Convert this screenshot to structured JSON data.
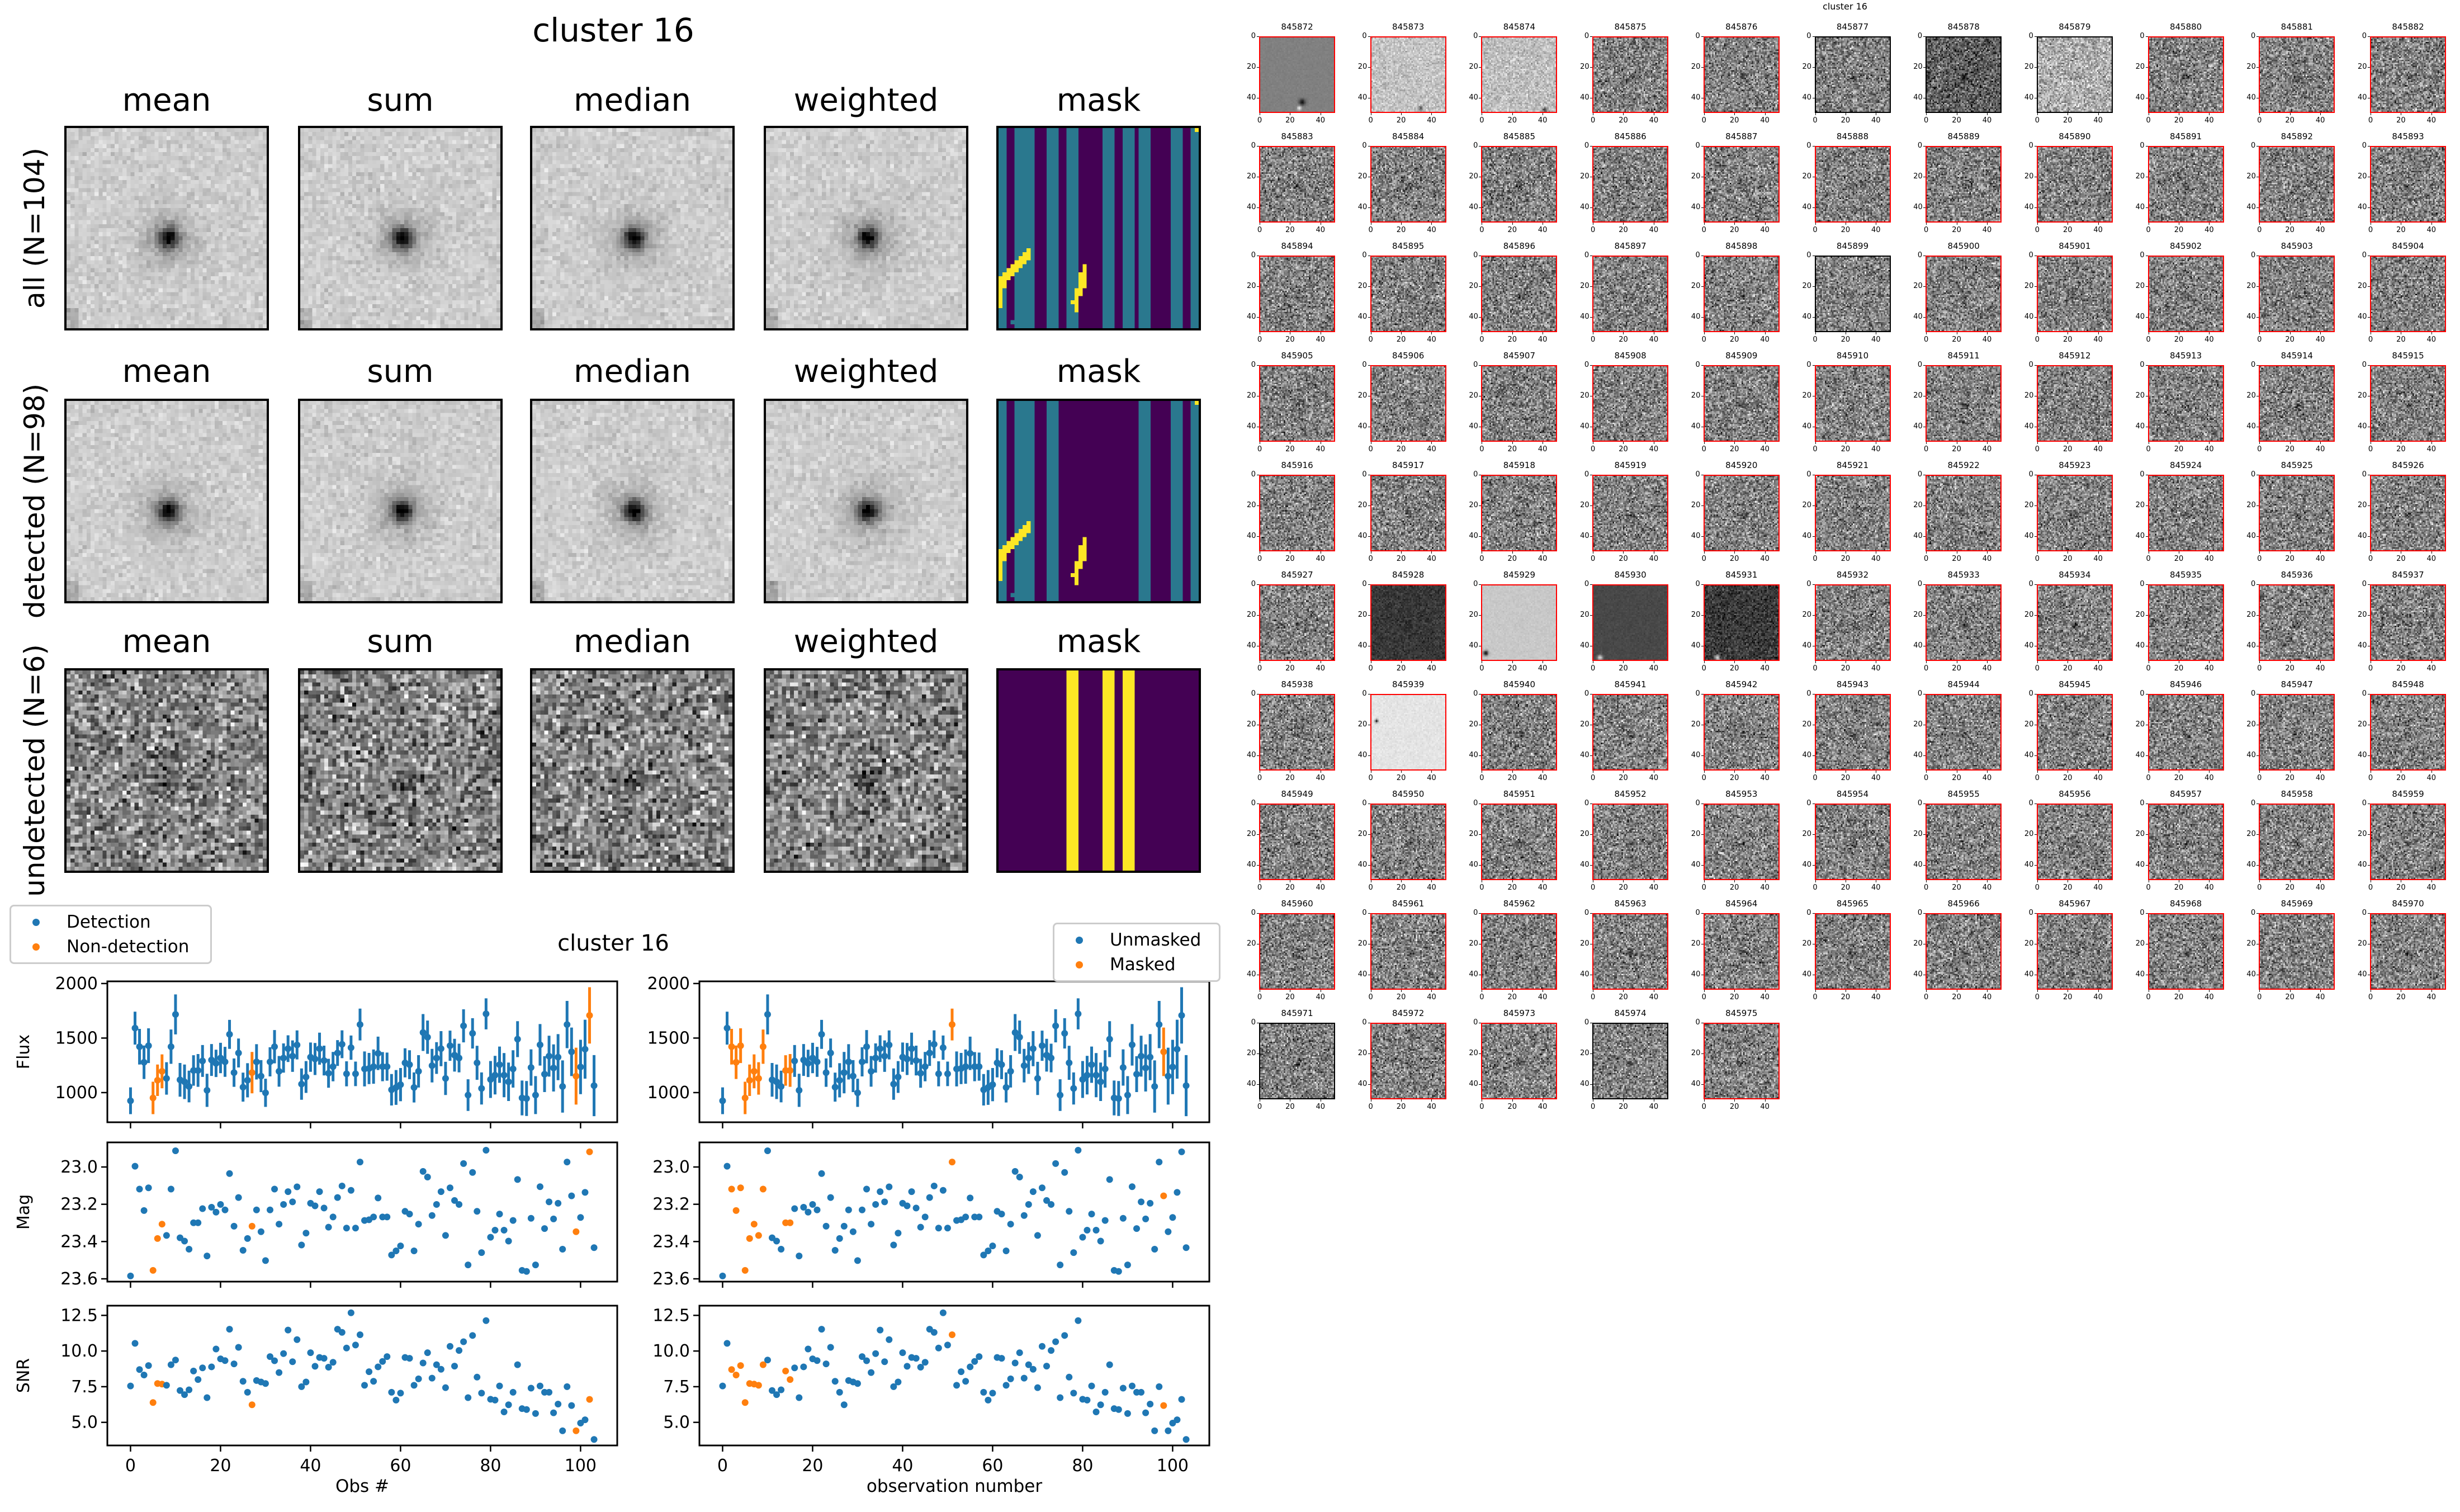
{
  "figure_title": "cluster 16",
  "stack_panels": {
    "columns": [
      "mean",
      "sum",
      "median",
      "weighted",
      "mask"
    ],
    "rows": [
      {
        "label": "all (N=104)"
      },
      {
        "label": "detected (N=98)"
      },
      {
        "label": "undetected (N=6)"
      }
    ]
  },
  "chart_data": {
    "type": "scatter",
    "title": "cluster 16",
    "xlabel_left": "Obs #",
    "xlabel_right": "observation number",
    "xlim": [
      -5.15,
      108.15
    ],
    "xticks": [
      0,
      20,
      40,
      60,
      80,
      100
    ],
    "panels": [
      {
        "ylabel": "Flux",
        "ylim": [
          728,
          2020
        ],
        "yticks": [
          1000,
          1500,
          2000
        ],
        "decimals": 0,
        "errorbars": true
      },
      {
        "ylabel": "Mag",
        "ylim": [
          23.615,
          22.868
        ],
        "yticks": [
          23.0,
          23.2,
          23.4,
          23.6
        ],
        "decimals": 1,
        "errorbars": false,
        "inverted": true
      },
      {
        "ylabel": "SNR",
        "ylim": [
          3.38,
          13.18
        ],
        "yticks": [
          5.0,
          7.5,
          10.0,
          12.5
        ],
        "decimals": 1,
        "errorbars": false
      }
    ],
    "flux": [
      925,
      1591,
      1421,
      1278,
      1430,
      951,
      1113,
      1195,
      1130,
      1421,
      1717,
      1117,
      1099,
      1056,
      1203,
      1203,
      1290,
      1021,
      1299,
      1268,
      1317,
      1282,
      1534,
      1183,
      1363,
      1050,
      1113,
      1183,
      1282,
      1151,
      998,
      1282,
      1421,
      1195,
      1317,
      1403,
      1334,
      1437,
      1078,
      1143,
      1325,
      1308,
      1403,
      1294,
      1177,
      1238,
      1363,
      1443,
      1172,
      1412,
      1172,
      1624,
      1217,
      1221,
      1238,
      1360,
      1238,
      1238,
      1026,
      1047,
      1073,
      1273,
      1256,
      1047,
      1195,
      1551,
      1508,
      1247,
      1317,
      1403,
      1130,
      1430,
      1343,
      1317,
      1612,
      977,
      1543,
      1273,
      1038,
      1722,
      1120,
      1160,
      1256,
      1160,
      1099,
      1217,
      1490,
      951,
      946,
      1230,
      977,
      1438,
      1169,
      1334,
      1226,
      1325,
      1056,
      1624,
      1374,
      1151,
      1235,
      1398,
      1708,
      1064
    ],
    "snr": [
      7.55,
      10.54,
      8.7,
      8.32,
      8.98,
      6.39,
      7.72,
      7.68,
      7.6,
      9.04,
      9.37,
      7.23,
      6.94,
      7.28,
      8.6,
      8.0,
      8.82,
      6.73,
      8.89,
      10.14,
      9.45,
      9.33,
      11.53,
      9.1,
      10.26,
      7.88,
      7.11,
      6.23,
      7.93,
      7.83,
      7.72,
      9.61,
      9.32,
      8.49,
      9.82,
      11.47,
      9.25,
      10.8,
      7.5,
      7.83,
      9.88,
      8.93,
      9.55,
      9.49,
      8.87,
      9.21,
      11.53,
      11.31,
      10.21,
      12.68,
      10.42,
      11.14,
      7.6,
      8.55,
      7.88,
      8.89,
      9.27,
      9.61,
      7.11,
      6.56,
      7.05,
      9.55,
      9.49,
      7.6,
      8.05,
      9.16,
      9.88,
      8.1,
      9.04,
      8.72,
      7.43,
      10.33,
      8.94,
      10.04,
      10.65,
      6.73,
      11.09,
      8.17,
      7.05,
      12.13,
      6.62,
      6.56,
      7.55,
      5.73,
      6.23,
      7.11,
      9.04,
      5.96,
      5.9,
      7.4,
      5.62,
      7.55,
      7.11,
      7.11,
      5.67,
      6.28,
      4.41,
      7.5,
      6.18,
      4.41,
      4.95,
      5.18,
      6.61,
      3.8
    ],
    "flux_error": "flux / snr",
    "mag_zeropoint": 31.0,
    "non_detection_indices": [
      5,
      6,
      7,
      27,
      99,
      102
    ],
    "masked_indices": [
      2,
      3,
      4,
      5,
      6,
      7,
      8,
      9,
      14,
      15,
      51,
      98
    ],
    "legend_left": {
      "position": "upper-left",
      "entries": [
        {
          "label": "Detection",
          "color": "#1f77b4"
        },
        {
          "label": "Non-detection",
          "color": "#ff7f0e"
        }
      ]
    },
    "legend_right": {
      "position": "upper-right",
      "entries": [
        {
          "label": "Unmasked",
          "color": "#1f77b4"
        },
        {
          "label": "Masked",
          "color": "#ff7f0e"
        }
      ]
    }
  },
  "thumbnails": {
    "title": "cluster 16",
    "tick_labels": [
      "0",
      "20",
      "40"
    ],
    "detected_border_color": "#ff0000",
    "undetected_border_color": "#000000",
    "ids": [
      "845872",
      "845873",
      "845874",
      "845875",
      "845876",
      "845877",
      "845878",
      "845879",
      "845880",
      "845881",
      "845882",
      "845883",
      "845884",
      "845885",
      "845886",
      "845887",
      "845888",
      "845889",
      "845890",
      "845891",
      "845892",
      "845893",
      "845894",
      "845895",
      "845896",
      "845897",
      "845898",
      "845899",
      "845900",
      "845901",
      "845902",
      "845903",
      "845904",
      "845905",
      "845906",
      "845907",
      "845908",
      "845909",
      "845910",
      "845911",
      "845912",
      "845913",
      "845914",
      "845915",
      "845916",
      "845917",
      "845918",
      "845919",
      "845920",
      "845921",
      "845922",
      "845923",
      "845924",
      "845925",
      "845926",
      "845927",
      "845928",
      "845929",
      "845930",
      "845931",
      "845932",
      "845933",
      "845934",
      "845935",
      "845936",
      "845937",
      "845938",
      "845939",
      "845940",
      "845941",
      "845942",
      "845943",
      "845944",
      "845945",
      "845946",
      "845947",
      "845948",
      "845949",
      "845950",
      "845951",
      "845952",
      "845953",
      "845954",
      "845955",
      "845956",
      "845957",
      "845958",
      "845959",
      "845960",
      "845961",
      "845962",
      "845963",
      "845964",
      "845965",
      "845966",
      "845967",
      "845968",
      "845969",
      "845970",
      "845971",
      "845972",
      "845973",
      "845974",
      "845975"
    ],
    "undetected_ids": [
      "845877",
      "845878",
      "845879",
      "845899",
      "845971",
      "845974"
    ]
  }
}
